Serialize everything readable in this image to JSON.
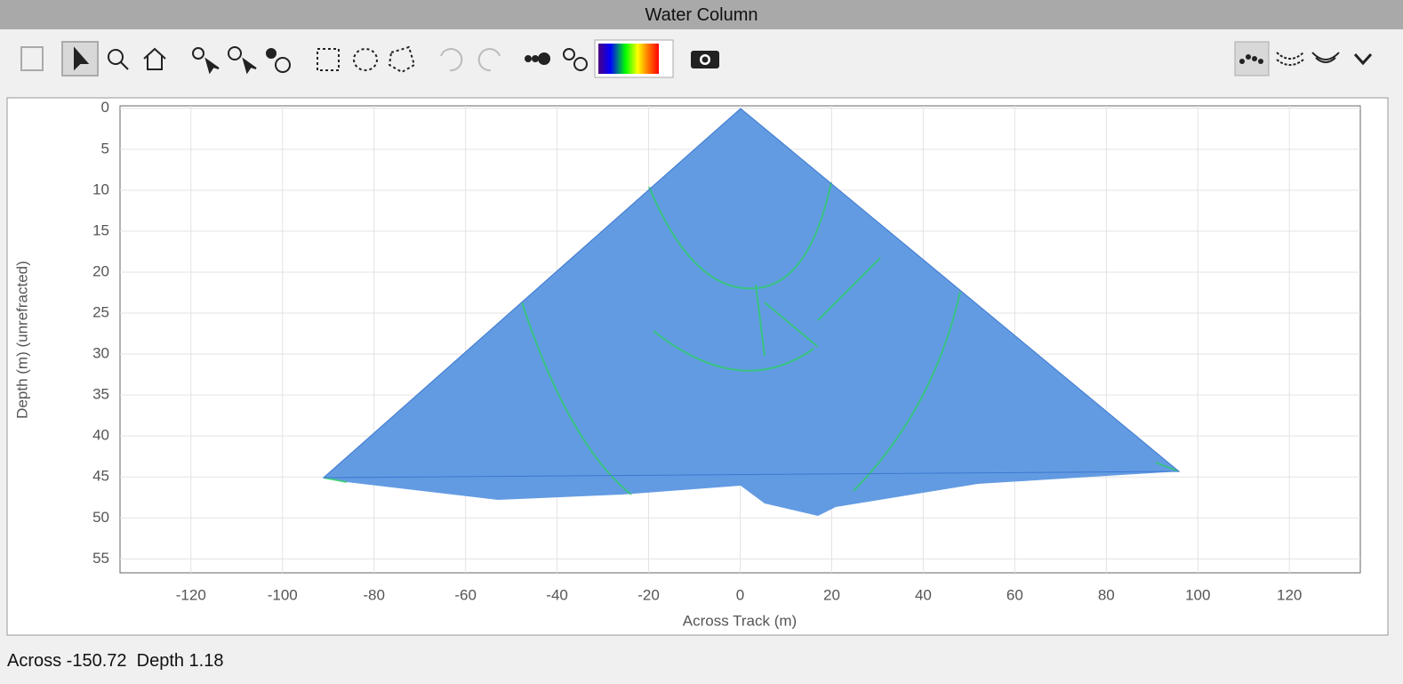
{
  "window": {
    "title": "Water Column"
  },
  "status": {
    "text": "Across -150.72  Depth 1.18"
  },
  "chart_data": {
    "type": "image",
    "xlabel": "Across Track (m)",
    "ylabel": "Depth (m) (unrefracted)",
    "xlim": [
      -135.5,
      135.5
    ],
    "xticks": [
      -120,
      -100,
      -80,
      -60,
      -40,
      -20,
      0,
      20,
      40,
      60,
      80,
      100,
      120
    ],
    "ylim": [
      56.7,
      -0.3
    ],
    "yticks": [
      0,
      5,
      10,
      15,
      20,
      25,
      30,
      35,
      40,
      45,
      50,
      55
    ],
    "grid": true
  }
}
